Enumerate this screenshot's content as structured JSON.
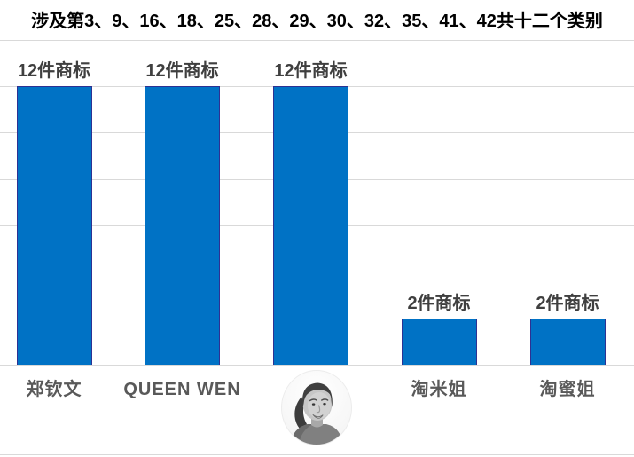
{
  "chart_data": {
    "type": "bar",
    "title": "涉及第3、9、16、18、25、28、29、30、32、35、41、42共十二个类别",
    "categories": [
      {
        "type": "text",
        "label": "郑钦文"
      },
      {
        "type": "text",
        "label": "QUEEN WEN"
      },
      {
        "type": "photo",
        "label": "",
        "icon": "portrait-photo"
      },
      {
        "type": "text",
        "label": "淘米姐"
      },
      {
        "type": "text",
        "label": "淘蜜姐"
      }
    ],
    "values": [
      12,
      12,
      12,
      2,
      2
    ],
    "data_labels": [
      "12件商标",
      "12件商标",
      "12件商标",
      "2件商标",
      "2件商标"
    ],
    "xlabel": "",
    "ylabel": "",
    "ylim": [
      0,
      14
    ],
    "grid_step": 2,
    "grid": true,
    "legend": "none",
    "colors": {
      "bar_fill": "#0072C5",
      "bar_border": "#2E3192",
      "gridline": "#D9D9D9",
      "title_text": "#000000",
      "data_label_text": "#3F3F3F",
      "category_label_text": "#595959"
    }
  }
}
